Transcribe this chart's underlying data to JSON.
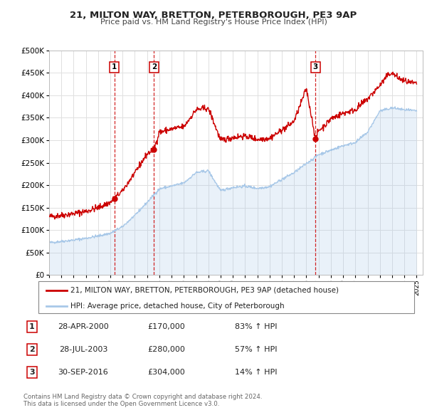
{
  "title": "21, MILTON WAY, BRETTON, PETERBOROUGH, PE3 9AP",
  "subtitle": "Price paid vs. HM Land Registry's House Price Index (HPI)",
  "background_color": "#ffffff",
  "grid_color": "#e0e0e0",
  "sale_line_color": "#cc0000",
  "hpi_line_color": "#a8c8e8",
  "transactions": [
    {
      "num": 1,
      "date_x": 2000.32,
      "price": 170000,
      "label": "28-APR-2000",
      "pct": "83% ↑ HPI"
    },
    {
      "num": 2,
      "date_x": 2003.56,
      "price": 280000,
      "label": "28-JUL-2003",
      "pct": "57% ↑ HPI"
    },
    {
      "num": 3,
      "date_x": 2016.75,
      "price": 304000,
      "label": "30-SEP-2016",
      "pct": "14% ↑ HPI"
    }
  ],
  "ylim": [
    0,
    500000
  ],
  "xlim_start": 1995.0,
  "xlim_end": 2025.5,
  "yticks": [
    0,
    50000,
    100000,
    150000,
    200000,
    250000,
    300000,
    350000,
    400000,
    450000,
    500000
  ],
  "xtick_years": [
    1995,
    1996,
    1997,
    1998,
    1999,
    2000,
    2001,
    2002,
    2003,
    2004,
    2005,
    2006,
    2007,
    2008,
    2009,
    2010,
    2011,
    2012,
    2013,
    2014,
    2015,
    2016,
    2017,
    2018,
    2019,
    2020,
    2021,
    2022,
    2023,
    2024,
    2025
  ],
  "legend_sale_label": "21, MILTON WAY, BRETTON, PETERBOROUGH, PE3 9AP (detached house)",
  "legend_hpi_label": "HPI: Average price, detached house, City of Peterborough",
  "footer1": "Contains HM Land Registry data © Crown copyright and database right 2024.",
  "footer2": "This data is licensed under the Open Government Licence v3.0.",
  "hpi_points": [
    [
      1995.0,
      72000
    ],
    [
      1996.0,
      75000
    ],
    [
      1997.0,
      78000
    ],
    [
      1998.0,
      82000
    ],
    [
      1999.0,
      87000
    ],
    [
      2000.0,
      93000
    ],
    [
      2001.0,
      108000
    ],
    [
      2002.0,
      133000
    ],
    [
      2003.0,
      162000
    ],
    [
      2004.0,
      192000
    ],
    [
      2005.0,
      198000
    ],
    [
      2006.0,
      205000
    ],
    [
      2007.0,
      228000
    ],
    [
      2008.0,
      232000
    ],
    [
      2009.0,
      188000
    ],
    [
      2010.0,
      195000
    ],
    [
      2011.0,
      198000
    ],
    [
      2012.0,
      193000
    ],
    [
      2013.0,
      197000
    ],
    [
      2014.0,
      213000
    ],
    [
      2015.0,
      228000
    ],
    [
      2016.0,
      248000
    ],
    [
      2017.0,
      268000
    ],
    [
      2018.0,
      278000
    ],
    [
      2019.0,
      288000
    ],
    [
      2020.0,
      295000
    ],
    [
      2021.0,
      318000
    ],
    [
      2022.0,
      365000
    ],
    [
      2023.0,
      372000
    ],
    [
      2024.0,
      368000
    ],
    [
      2025.0,
      365000
    ]
  ],
  "sale_points": [
    [
      1995.0,
      130000
    ],
    [
      1996.0,
      133000
    ],
    [
      1997.0,
      137000
    ],
    [
      1998.0,
      142000
    ],
    [
      1999.0,
      150000
    ],
    [
      2000.0,
      162000
    ],
    [
      2000.32,
      170000
    ],
    [
      2001.0,
      188000
    ],
    [
      2002.0,
      228000
    ],
    [
      2003.0,
      270000
    ],
    [
      2003.56,
      280000
    ],
    [
      2004.0,
      318000
    ],
    [
      2005.0,
      325000
    ],
    [
      2006.0,
      330000
    ],
    [
      2007.0,
      368000
    ],
    [
      2008.0,
      372000
    ],
    [
      2009.0,
      300000
    ],
    [
      2010.0,
      306000
    ],
    [
      2011.0,
      310000
    ],
    [
      2012.0,
      302000
    ],
    [
      2013.0,
      305000
    ],
    [
      2014.0,
      322000
    ],
    [
      2015.0,
      342000
    ],
    [
      2016.0,
      415000
    ],
    [
      2016.75,
      304000
    ],
    [
      2017.0,
      322000
    ],
    [
      2017.5,
      332000
    ],
    [
      2018.0,
      348000
    ],
    [
      2019.0,
      360000
    ],
    [
      2020.0,
      368000
    ],
    [
      2021.0,
      392000
    ],
    [
      2022.0,
      422000
    ],
    [
      2022.75,
      448000
    ],
    [
      2023.0,
      450000
    ],
    [
      2023.5,
      438000
    ],
    [
      2024.0,
      432000
    ],
    [
      2024.5,
      428000
    ],
    [
      2025.0,
      425000
    ]
  ],
  "hpi_noise_scale": 1500,
  "sale_noise_scale": 3500
}
